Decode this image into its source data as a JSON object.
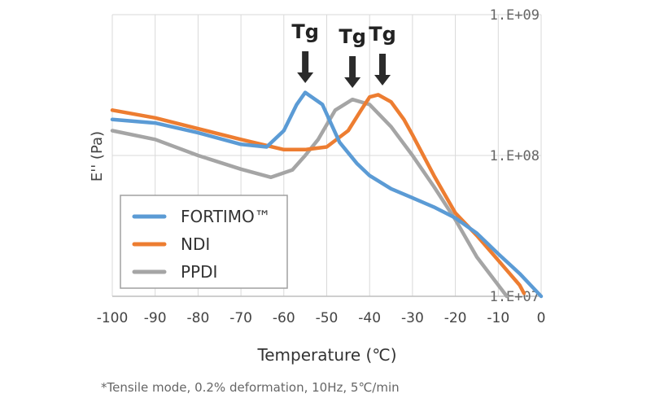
{
  "chart_data": {
    "type": "line",
    "xlabel": "Temperature (℃)",
    "ylabel": "E'' (Pa)",
    "xlim": [
      -100,
      0
    ],
    "ylim": [
      10000000,
      1000000000
    ],
    "yscale": "log",
    "grid": true,
    "legend_position": "bottom-left",
    "x_ticks": [
      "-100",
      "-90",
      "-80",
      "-70",
      "-60",
      "-50",
      "-40",
      "-30",
      "-20",
      "-10",
      "0"
    ],
    "y_ticks": [
      "1.E+07",
      "1.E+08",
      "1.E+09"
    ],
    "footnote": "*Tensile mode, 0.2% deformation, 10Hz, 5℃/min",
    "annotations": [
      {
        "text": "Tg",
        "x": -55
      },
      {
        "text": "Tg",
        "x": -44
      },
      {
        "text": "Tg",
        "x": -37
      }
    ],
    "series": [
      {
        "name": "FORTIMO™",
        "color": "#5b9bd5",
        "x": [
          -100,
          -90,
          -80,
          -70,
          -64,
          -60,
          -57,
          -55,
          -51,
          -47,
          -43,
          -40,
          -35,
          -30,
          -25,
          -20,
          -15,
          -10,
          -5,
          0
        ],
        "y": [
          180000000.0,
          170000000.0,
          145000000.0,
          120000000.0,
          115000000.0,
          150000000.0,
          230000000.0,
          280000000.0,
          230000000.0,
          124000000.0,
          88000000.0,
          72000000.0,
          58000000.0,
          50000000.0,
          43000000.0,
          36000000.0,
          28000000.0,
          20000000.0,
          14500000.0,
          10000000.0
        ]
      },
      {
        "name": "NDI",
        "color": "#ed7d31",
        "x": [
          -100,
          -90,
          -80,
          -70,
          -60,
          -55,
          -50,
          -45,
          -42,
          -40,
          -38,
          -35,
          -32,
          -30,
          -25,
          -20,
          -15,
          -10,
          -5,
          -4
        ],
        "y": [
          210000000.0,
          185000000.0,
          155000000.0,
          130000000.0,
          110000000.0,
          110000000.0,
          115000000.0,
          150000000.0,
          210000000.0,
          260000000.0,
          270000000.0,
          240000000.0,
          180000000.0,
          140000000.0,
          72000000.0,
          39000000.0,
          27000000.0,
          18000000.0,
          12000000.0,
          10500000.0
        ]
      },
      {
        "name": "PPDI",
        "color": "#a5a5a5",
        "x": [
          -100,
          -90,
          -80,
          -70,
          -63,
          -58,
          -55,
          -52,
          -48,
          -44,
          -40,
          -35,
          -30,
          -25,
          -20,
          -15,
          -10,
          -8
        ],
        "y": [
          150000000.0,
          130000000.0,
          100000000.0,
          80000000.0,
          70000000.0,
          79000000.0,
          100000000.0,
          130000000.0,
          210000000.0,
          250000000.0,
          230000000.0,
          160000000.0,
          100000000.0,
          60000000.0,
          35000000.0,
          19000000.0,
          12000000.0,
          10000000.0
        ]
      }
    ]
  }
}
